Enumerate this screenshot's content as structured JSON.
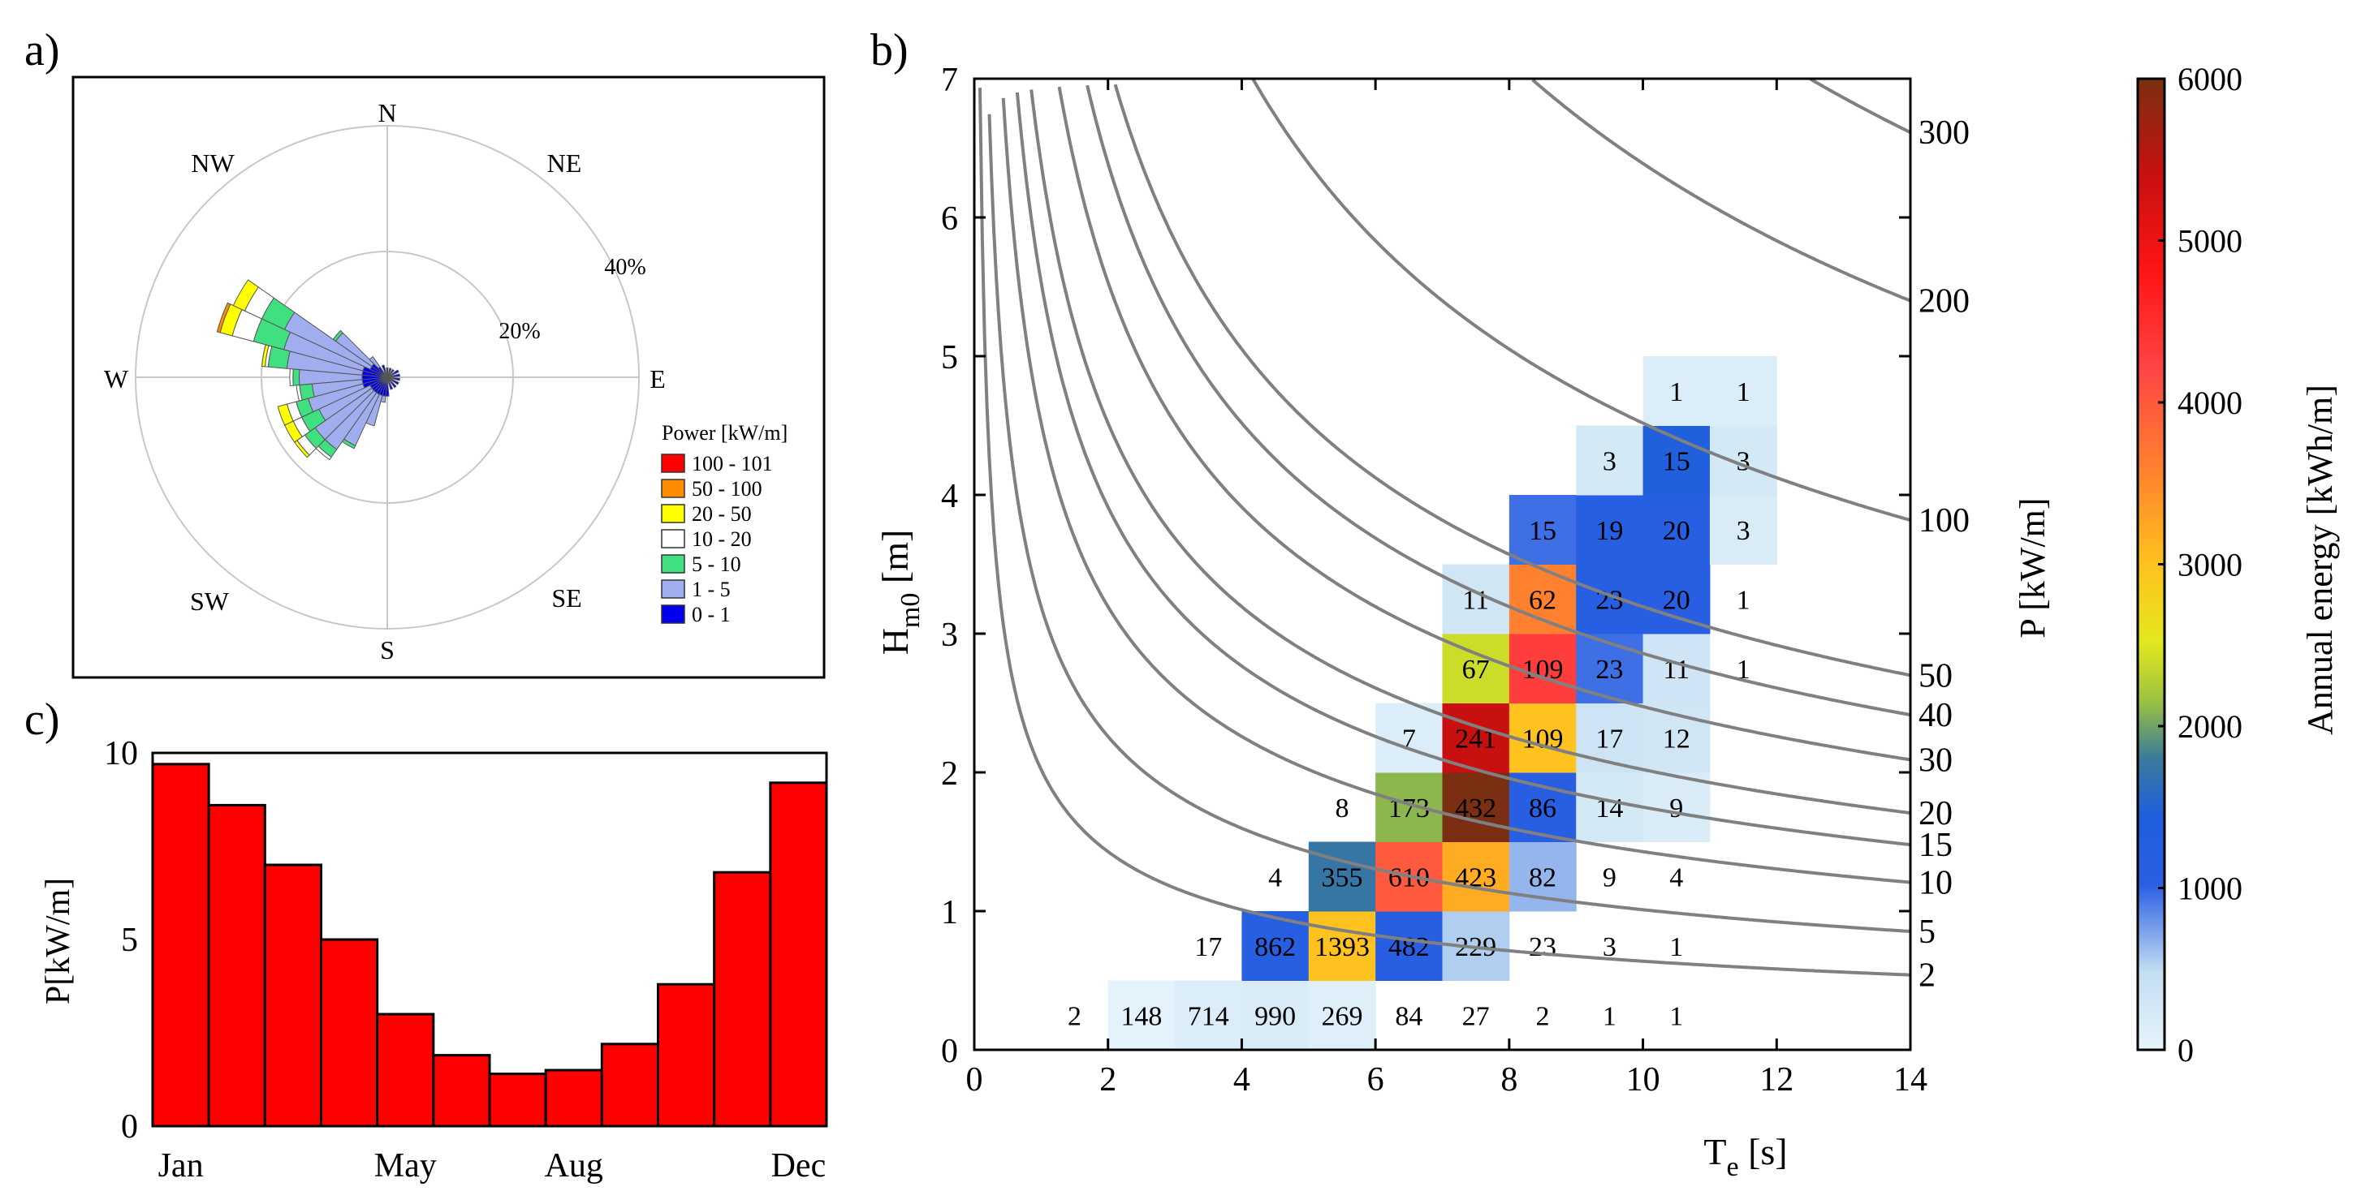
{
  "panels": {
    "a_label": "a)",
    "b_label": "b)",
    "c_label": "c)"
  },
  "colors": {
    "contour": "#808080",
    "bar_fill": "#ff0000",
    "grid": "#c8c8c8"
  },
  "colormap": [
    [
      0.0,
      "#e6f4fb"
    ],
    [
      0.08,
      "#c4def2"
    ],
    [
      0.17,
      "#2a5fe3"
    ],
    [
      0.24,
      "#1f5fdf"
    ],
    [
      0.3,
      "#3a7a9a"
    ],
    [
      0.36,
      "#9cc340"
    ],
    [
      0.42,
      "#e3e81e"
    ],
    [
      0.5,
      "#ffc21e"
    ],
    [
      0.58,
      "#ff8c2a"
    ],
    [
      0.7,
      "#ff4545"
    ],
    [
      0.8,
      "#ff1515"
    ],
    [
      0.9,
      "#c81010"
    ],
    [
      1.0,
      "#7a2f12"
    ]
  ],
  "chart_data": [
    {
      "id": "a",
      "type": "windrose",
      "direction_labels": [
        "N",
        "NE",
        "E",
        "SE",
        "S",
        "SW",
        "W",
        "NW"
      ],
      "radial_ticks": [
        {
          "value": 20,
          "label": "20%"
        },
        {
          "value": 40,
          "label": "40%"
        }
      ],
      "rmax": 40,
      "legend_title": "Power [kW/m]",
      "bins": [
        {
          "label": "100 - 101",
          "color": "#ff0000"
        },
        {
          "label": "50 - 100",
          "color": "#ff8c00"
        },
        {
          "label": "20 - 50",
          "color": "#ffff00"
        },
        {
          "label": "10 - 20",
          "color": "#ffffff"
        },
        {
          "label": "5 - 10",
          "color": "#40e080"
        },
        {
          "label": "1 - 5",
          "color": "#a0aef0"
        },
        {
          "label": "0 - 1",
          "color": "#0000ee"
        }
      ],
      "sectors": [
        {
          "dir": 180,
          "c": [
            3,
            0,
            0,
            0,
            0,
            0,
            0
          ]
        },
        {
          "dir": 190,
          "c": [
            3,
            1,
            0,
            0,
            0,
            0,
            0
          ]
        },
        {
          "dir": 200,
          "c": [
            3,
            5,
            0,
            0,
            0,
            0,
            0
          ]
        },
        {
          "dir": 210,
          "c": [
            3,
            9,
            0.5,
            0,
            0,
            0,
            0
          ]
        },
        {
          "dir": 220,
          "c": [
            3,
            11,
            1.5,
            0.5,
            0,
            0,
            0
          ]
        },
        {
          "dir": 230,
          "c": [
            3,
            11,
            2,
            1.5,
            0.5,
            0,
            0
          ]
        },
        {
          "dir": 240,
          "c": [
            3,
            9,
            3,
            1.5,
            1.5,
            0,
            0
          ]
        },
        {
          "dir": 250,
          "c": [
            4,
            9,
            2,
            1.5,
            1.5,
            0,
            0
          ]
        },
        {
          "dir": 260,
          "c": [
            4,
            8,
            2,
            0.5,
            0,
            0,
            0
          ]
        },
        {
          "dir": 270,
          "c": [
            4,
            10,
            1,
            0.5,
            0,
            0,
            0
          ]
        },
        {
          "dir": 280,
          "c": [
            4,
            12,
            3,
            0.5,
            0.5,
            0,
            0
          ]
        },
        {
          "dir": 290,
          "c": [
            4,
            13,
            5,
            3.5,
            2,
            0.5,
            0
          ]
        },
        {
          "dir": 300,
          "c": [
            3,
            15,
            4,
            3,
            2,
            0,
            0
          ]
        },
        {
          "dir": 310,
          "c": [
            3,
            7,
            0.5,
            0,
            0,
            0,
            0
          ]
        },
        {
          "dir": 320,
          "c": [
            2,
            2,
            0,
            0,
            0,
            0,
            0
          ]
        },
        {
          "dir": 340,
          "c": [
            2,
            0,
            0,
            0,
            0,
            0,
            0
          ]
        },
        {
          "dir": 0,
          "c": [
            1.5,
            0,
            0,
            0,
            0,
            0,
            0
          ]
        },
        {
          "dir": 20,
          "c": [
            1.5,
            0,
            0,
            0,
            0,
            0,
            0
          ]
        },
        {
          "dir": 40,
          "c": [
            1.5,
            0,
            0,
            0,
            0,
            0,
            0
          ]
        },
        {
          "dir": 60,
          "c": [
            2,
            0,
            0,
            0,
            0,
            0,
            0
          ]
        },
        {
          "dir": 80,
          "c": [
            2,
            0,
            0,
            0,
            0,
            0,
            0
          ]
        },
        {
          "dir": 100,
          "c": [
            2,
            0,
            0,
            0,
            0,
            0,
            0
          ]
        },
        {
          "dir": 120,
          "c": [
            2,
            0,
            0,
            0,
            0,
            0,
            0
          ]
        },
        {
          "dir": 140,
          "c": [
            2,
            0,
            0,
            0,
            0,
            0,
            0
          ]
        },
        {
          "dir": 160,
          "c": [
            2,
            0,
            0,
            0,
            0,
            0,
            0
          ]
        }
      ]
    },
    {
      "id": "b",
      "type": "heatmap",
      "xlabel_main": "T",
      "xlabel_sub": "e",
      "xlabel_unit": " [s]",
      "ylabel_main": "H",
      "ylabel_sub": "m0",
      "ylabel_unit": " [m]",
      "right_label": "P [kW/m]",
      "xlim": [
        0,
        14
      ],
      "ylim": [
        0,
        7
      ],
      "xticks": [
        0,
        2,
        4,
        6,
        8,
        10,
        12,
        14
      ],
      "yticks": [
        0,
        1,
        2,
        3,
        4,
        5,
        6,
        7
      ],
      "cell_width": 1,
      "cell_height": 0.5,
      "cells": [
        {
          "x": 1,
          "y": 0,
          "v": 2,
          "e": 5
        },
        {
          "x": 2,
          "y": 0,
          "v": 148,
          "e": 25
        },
        {
          "x": 3,
          "y": 0,
          "v": 714,
          "e": 150
        },
        {
          "x": 4,
          "y": 0,
          "v": 990,
          "e": 200
        },
        {
          "x": 5,
          "y": 0,
          "v": 269,
          "e": 120
        },
        {
          "x": 6,
          "y": 0,
          "v": 84,
          "e": 15
        },
        {
          "x": 7,
          "y": 0,
          "v": 27,
          "e": 10
        },
        {
          "x": 8,
          "y": 0,
          "v": 2,
          "e": 5
        },
        {
          "x": 9,
          "y": 0,
          "v": 1,
          "e": 5
        },
        {
          "x": 10,
          "y": 0,
          "v": 1,
          "e": 5
        },
        {
          "x": 3,
          "y": 0.5,
          "v": 17,
          "e": 10
        },
        {
          "x": 4,
          "y": 0.5,
          "v": 862,
          "e": 1150
        },
        {
          "x": 5,
          "y": 0.5,
          "v": 1393,
          "e": 3000
        },
        {
          "x": 6,
          "y": 0.5,
          "v": 482,
          "e": 1100
        },
        {
          "x": 7,
          "y": 0.5,
          "v": 229,
          "e": 550
        },
        {
          "x": 8,
          "y": 0.5,
          "v": 23,
          "e": 15
        },
        {
          "x": 9,
          "y": 0.5,
          "v": 3,
          "e": 5
        },
        {
          "x": 10,
          "y": 0.5,
          "v": 1,
          "e": 5
        },
        {
          "x": 4,
          "y": 1,
          "v": 4,
          "e": 5
        },
        {
          "x": 5,
          "y": 1,
          "v": 355,
          "e": 1750
        },
        {
          "x": 6,
          "y": 1,
          "v": 610,
          "e": 4000
        },
        {
          "x": 7,
          "y": 1,
          "v": 423,
          "e": 3200
        },
        {
          "x": 8,
          "y": 1,
          "v": 82,
          "e": 650
        },
        {
          "x": 9,
          "y": 1,
          "v": 9,
          "e": 5
        },
        {
          "x": 10,
          "y": 1,
          "v": 4,
          "e": 5
        },
        {
          "x": 5,
          "y": 1.5,
          "v": 8,
          "e": 5
        },
        {
          "x": 6,
          "y": 1.5,
          "v": 173,
          "e": 2100
        },
        {
          "x": 7,
          "y": 1.5,
          "v": 432,
          "e": 6000
        },
        {
          "x": 8,
          "y": 1.5,
          "v": 86,
          "e": 1100
        },
        {
          "x": 9,
          "y": 1.5,
          "v": 14,
          "e": 250
        },
        {
          "x": 10,
          "y": 1.5,
          "v": 9,
          "e": 180
        },
        {
          "x": 6,
          "y": 2,
          "v": 7,
          "e": 150
        },
        {
          "x": 7,
          "y": 2,
          "v": 241,
          "e": 5400
        },
        {
          "x": 8,
          "y": 2,
          "v": 109,
          "e": 3000
        },
        {
          "x": 9,
          "y": 2,
          "v": 17,
          "e": 350
        },
        {
          "x": 10,
          "y": 2,
          "v": 12,
          "e": 300
        },
        {
          "x": 7,
          "y": 2.5,
          "v": 67,
          "e": 2400
        },
        {
          "x": 8,
          "y": 2.5,
          "v": 109,
          "e": 4300
        },
        {
          "x": 9,
          "y": 2.5,
          "v": 23,
          "e": 950
        },
        {
          "x": 10,
          "y": 2.5,
          "v": 11,
          "e": 320
        },
        {
          "x": 11,
          "y": 2.5,
          "v": 1,
          "e": 5
        },
        {
          "x": 7,
          "y": 3,
          "v": 11,
          "e": 300
        },
        {
          "x": 8,
          "y": 3,
          "v": 62,
          "e": 3600
        },
        {
          "x": 9,
          "y": 3,
          "v": 23,
          "e": 1150
        },
        {
          "x": 10,
          "y": 3,
          "v": 20,
          "e": 1100
        },
        {
          "x": 11,
          "y": 3,
          "v": 1,
          "e": 5
        },
        {
          "x": 8,
          "y": 3.5,
          "v": 15,
          "e": 950
        },
        {
          "x": 9,
          "y": 3.5,
          "v": 19,
          "e": 1150
        },
        {
          "x": 10,
          "y": 3.5,
          "v": 20,
          "e": 1150
        },
        {
          "x": 11,
          "y": 3.5,
          "v": 3,
          "e": 200
        },
        {
          "x": 9,
          "y": 4,
          "v": 3,
          "e": 250
        },
        {
          "x": 10,
          "y": 4,
          "v": 15,
          "e": 1450
        },
        {
          "x": 11,
          "y": 4,
          "v": 3,
          "e": 250
        },
        {
          "x": 10,
          "y": 4.5,
          "v": 1,
          "e": 150
        },
        {
          "x": 11,
          "y": 4.5,
          "v": 1,
          "e": 150
        }
      ],
      "power_contours": [
        2,
        5,
        10,
        15,
        20,
        30,
        40,
        50,
        100,
        200,
        300
      ],
      "colorbar": {
        "min": 0,
        "max": 6000,
        "ticks": [
          0,
          1000,
          2000,
          3000,
          4000,
          5000,
          6000
        ],
        "label": "Annual energy [kWh/m]"
      }
    },
    {
      "id": "c",
      "type": "bar",
      "ylabel": "P[kW/m]",
      "ylim": [
        0,
        10
      ],
      "yticks": [
        0,
        5,
        10
      ],
      "xtick_labels": [
        {
          "index": 0,
          "label": "Jan"
        },
        {
          "index": 4,
          "label": "May"
        },
        {
          "index": 7,
          "label": "Aug"
        },
        {
          "index": 11,
          "label": "Dec"
        }
      ],
      "values": [
        9.7,
        8.6,
        7.0,
        5.0,
        3.0,
        1.9,
        1.4,
        1.5,
        2.2,
        3.8,
        6.8,
        9.2
      ]
    }
  ]
}
